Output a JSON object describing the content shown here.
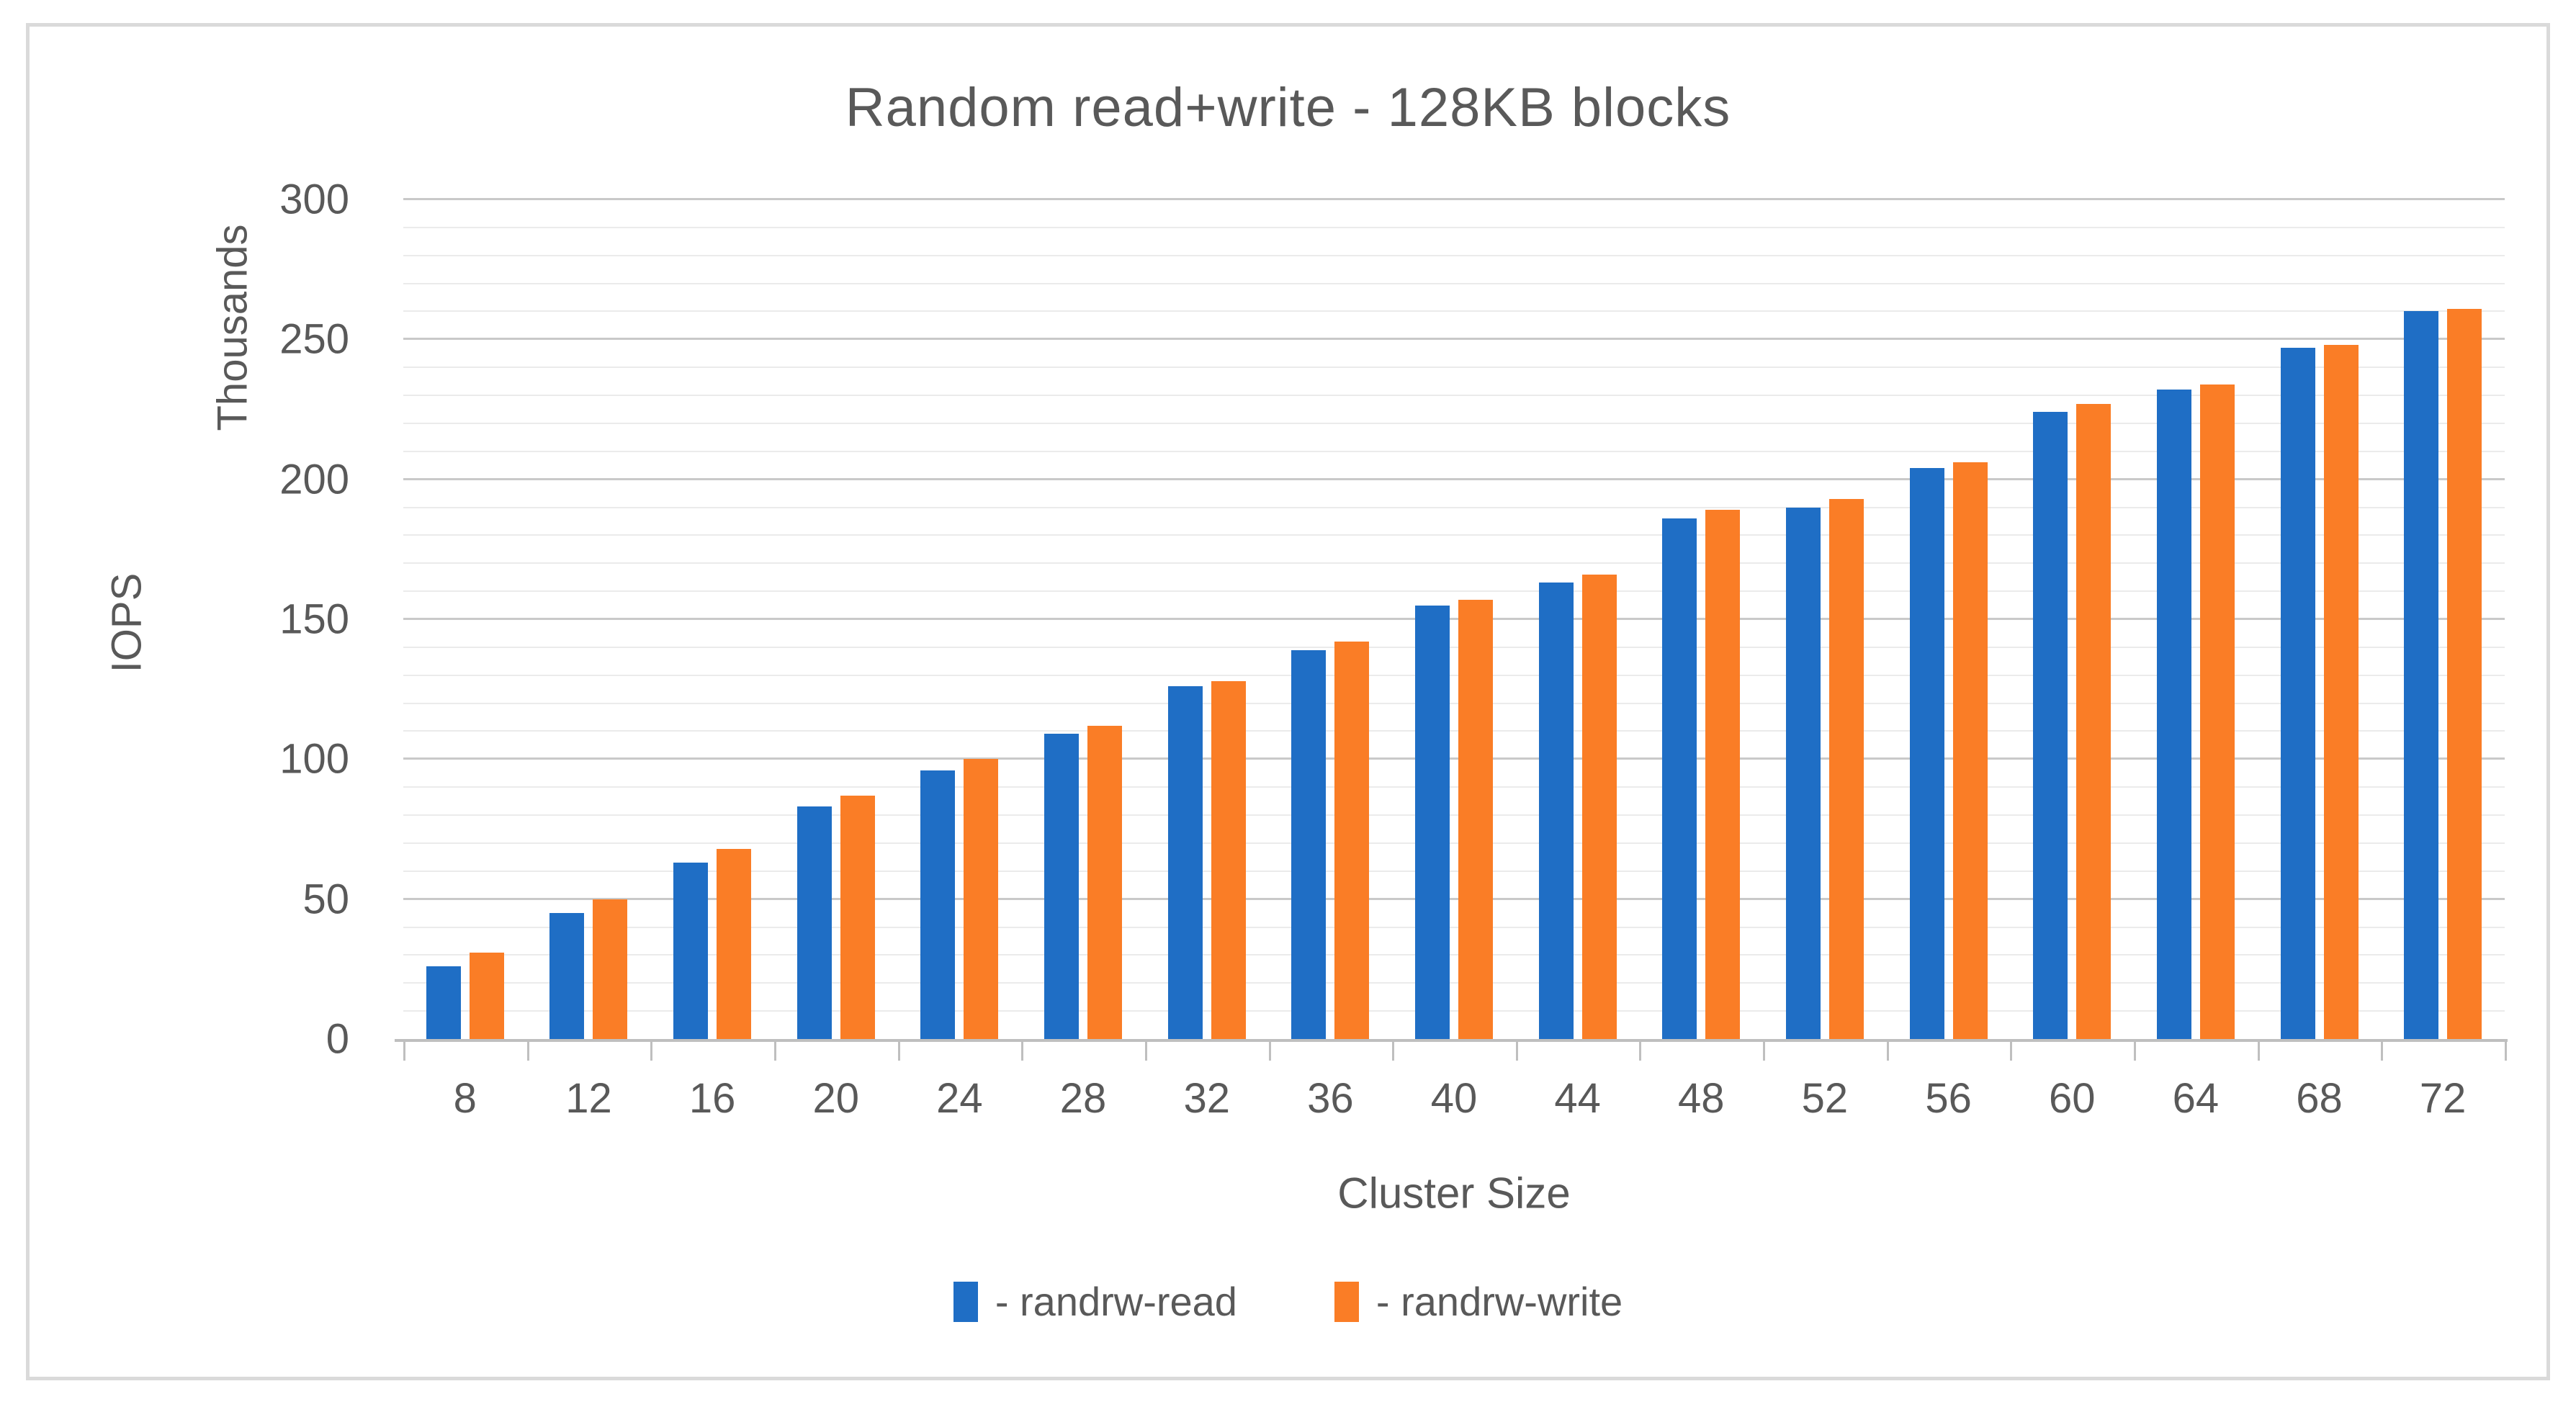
{
  "title": "Random read+write - 128KB blocks",
  "y_axis": {
    "primary_label": "IOPS",
    "secondary_label": "Thousands",
    "ticks": [
      0,
      50,
      100,
      150,
      200,
      250,
      300
    ]
  },
  "x_axis": {
    "label": "Cluster Size"
  },
  "colors": {
    "read_blue": "#1f6ec5",
    "write_orange": "#fa7d26",
    "text_gray": "#595959",
    "major_grid": "#c9c9c9",
    "minor_grid": "#ebebeb",
    "axis_gray": "#bfbfbf",
    "frame_border": "#dadada"
  },
  "chart_data": {
    "type": "bar",
    "title": "Random read+write - 128KB blocks",
    "xlabel": "Cluster Size",
    "ylabel": "IOPS",
    "y_multiplier_label": "Thousands",
    "categories": [
      8,
      12,
      16,
      20,
      24,
      28,
      32,
      36,
      40,
      44,
      48,
      52,
      56,
      60,
      64,
      68,
      72
    ],
    "series": [
      {
        "name": "- randrw-read",
        "color": "#1f6ec5",
        "values": [
          26,
          45,
          63,
          83,
          96,
          109,
          126,
          139,
          155,
          163,
          186,
          190,
          204,
          224,
          232,
          247,
          260
        ]
      },
      {
        "name": "- randrw-write",
        "color": "#fa7d26",
        "values": [
          31,
          50,
          68,
          87,
          100,
          112,
          128,
          142,
          157,
          166,
          189,
          193,
          206,
          227,
          234,
          248,
          261
        ]
      }
    ],
    "ylim": [
      0,
      300
    ],
    "y_major_step": 50,
    "y_minor_step": 10,
    "grid": true,
    "legend_position": "bottom"
  }
}
